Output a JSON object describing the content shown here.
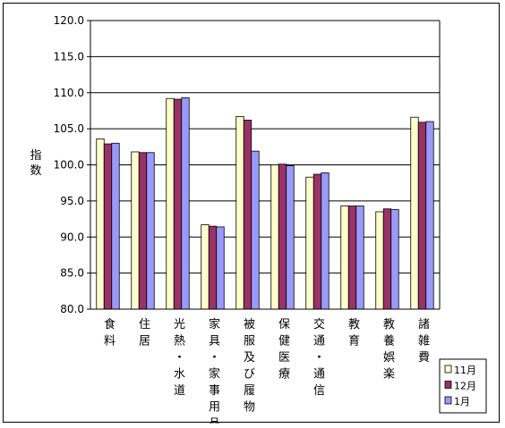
{
  "chart_data": {
    "type": "bar",
    "ylabel": "指数",
    "ylim": [
      80,
      120
    ],
    "yticks": [
      "80.0",
      "85.0",
      "90.0",
      "95.0",
      "100.0",
      "105.0",
      "110.0",
      "115.0",
      "120.0"
    ],
    "grid": true,
    "legend_position": "bottom-right",
    "categories": [
      "食料",
      "住居",
      "光熱・水道",
      "家具・家事用品",
      "被服及び履物",
      "保健医療",
      "交通・通信",
      "教育",
      "教養娯楽",
      "諸雑費"
    ],
    "series": [
      {
        "name": "11月",
        "color": "#ffffcc",
        "values": [
          103.6,
          101.8,
          109.2,
          91.7,
          106.7,
          100.0,
          98.3,
          94.3,
          93.5,
          106.6
        ]
      },
      {
        "name": "12月",
        "color": "#993366",
        "values": [
          102.9,
          101.7,
          109.1,
          91.5,
          106.2,
          100.1,
          98.7,
          94.3,
          93.9,
          105.9
        ]
      },
      {
        "name": "1月",
        "color": "#9999ff",
        "values": [
          103.0,
          101.7,
          109.3,
          91.4,
          101.9,
          99.9,
          98.9,
          94.3,
          93.8,
          106.0
        ]
      }
    ]
  }
}
